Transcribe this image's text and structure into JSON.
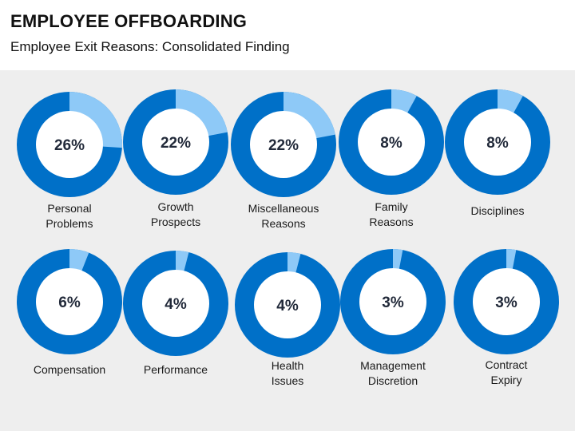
{
  "header": {
    "title": "EMPLOYEE OFFBOARDING",
    "subtitle": "Employee Exit Reasons: Consolidated Finding"
  },
  "colors": {
    "ring_dark": "#0070c8",
    "ring_light": "#8ec9f7",
    "panel_bg": "#eeeeee"
  },
  "chart_data": {
    "type": "pie",
    "title": "Employee Exit Reasons: Consolidated Finding",
    "unit": "%",
    "items": [
      {
        "label": [
          "Personal",
          "Problems"
        ],
        "value": 26,
        "display": "26%"
      },
      {
        "label": [
          "Growth",
          "Prospects"
        ],
        "value": 22,
        "display": "22%"
      },
      {
        "label": [
          "Miscellaneous",
          "Reasons"
        ],
        "value": 22,
        "display": "22%"
      },
      {
        "label": [
          "Family",
          "Reasons"
        ],
        "value": 8,
        "display": "8%"
      },
      {
        "label": [
          "Disciplines"
        ],
        "value": 8,
        "display": "8%"
      },
      {
        "label": [
          "Compensation"
        ],
        "value": 6,
        "display": "6%"
      },
      {
        "label": [
          "Performance"
        ],
        "value": 4,
        "display": "4%"
      },
      {
        "label": [
          "Health",
          "Issues"
        ],
        "value": 4,
        "display": "4%"
      },
      {
        "label": [
          "Management",
          "Discretion"
        ],
        "value": 3,
        "display": "3%"
      },
      {
        "label": [
          "Contract",
          "Expiry"
        ],
        "value": 3,
        "display": "3%"
      }
    ]
  }
}
